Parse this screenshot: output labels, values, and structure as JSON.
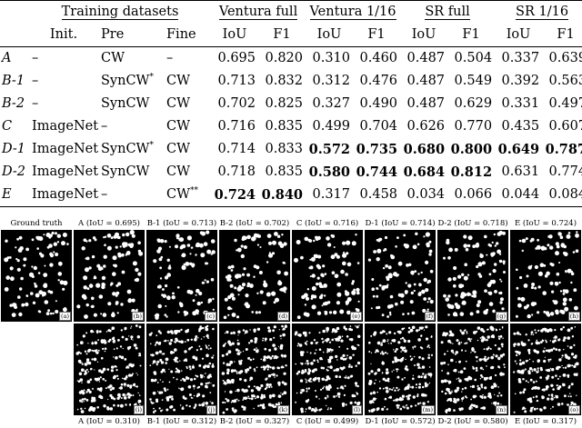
{
  "table": {
    "group_headers": {
      "training": "Training datasets",
      "ventura_full": "Ventura full",
      "ventura_1_16": "Ventura 1/16",
      "sr_full": "SR full",
      "sr_1_16": "SR 1/16"
    },
    "sub_headers": {
      "init": "Init.",
      "pre": "Pre",
      "fine": "Fine",
      "iou": "IoU",
      "f1": "F1"
    },
    "rows": [
      {
        "label": "A",
        "init": "–",
        "pre": "CW",
        "pre_sup": "",
        "fine": "–",
        "fine_sup": "",
        "vals": [
          "0.695",
          "0.820",
          "0.310",
          "0.460",
          "0.487",
          "0.504",
          "0.337",
          "0.639"
        ],
        "bold": [
          false,
          false,
          false,
          false,
          false,
          false,
          false,
          false
        ]
      },
      {
        "label": "B-1",
        "init": "–",
        "pre": "SynCW",
        "pre_sup": "*",
        "fine": "CW",
        "fine_sup": "",
        "vals": [
          "0.713",
          "0.832",
          "0.312",
          "0.476",
          "0.487",
          "0.549",
          "0.392",
          "0.563"
        ],
        "bold": [
          false,
          false,
          false,
          false,
          false,
          false,
          false,
          false
        ]
      },
      {
        "label": "B-2",
        "init": "–",
        "pre": "SynCW",
        "pre_sup": "",
        "fine": "CW",
        "fine_sup": "",
        "vals": [
          "0.702",
          "0.825",
          "0.327",
          "0.490",
          "0.487",
          "0.629",
          "0.331",
          "0.497"
        ],
        "bold": [
          false,
          false,
          false,
          false,
          false,
          false,
          false,
          false
        ]
      },
      {
        "label": "C",
        "init": "ImageNet",
        "pre": "–",
        "pre_sup": "",
        "fine": "CW",
        "fine_sup": "",
        "vals": [
          "0.716",
          "0.835",
          "0.499",
          "0.704",
          "0.626",
          "0.770",
          "0.435",
          "0.607"
        ],
        "bold": [
          false,
          false,
          false,
          false,
          false,
          false,
          false,
          false
        ]
      },
      {
        "label": "D-1",
        "init": "ImageNet",
        "pre": "SynCW",
        "pre_sup": "*",
        "fine": "CW",
        "fine_sup": "",
        "vals": [
          "0.714",
          "0.833",
          "0.572",
          "0.735",
          "0.680",
          "0.800",
          "0.649",
          "0.787"
        ],
        "bold": [
          false,
          false,
          true,
          true,
          true,
          true,
          true,
          true
        ]
      },
      {
        "label": "D-2",
        "init": "ImageNet",
        "pre": "SynCW",
        "pre_sup": "",
        "fine": "CW",
        "fine_sup": "",
        "vals": [
          "0.718",
          "0.835",
          "0.580",
          "0.744",
          "0.684",
          "0.812",
          "0.631",
          "0.774"
        ],
        "bold": [
          false,
          false,
          true,
          true,
          true,
          true,
          false,
          false
        ]
      },
      {
        "label": "E",
        "init": "ImageNet",
        "pre": "–",
        "pre_sup": "",
        "fine": "CW",
        "fine_sup": "**",
        "vals": [
          "0.724",
          "0.840",
          "0.317",
          "0.458",
          "0.034",
          "0.066",
          "0.044",
          "0.084"
        ],
        "bold": [
          true,
          true,
          false,
          false,
          false,
          false,
          false,
          false
        ]
      }
    ]
  },
  "figure": {
    "top_captions": [
      "Ground truth",
      "A (IoU = 0.695)",
      "B-1 (IoU = 0.713)",
      "B-2 (IoU = 0.702)",
      "C (IoU = 0.716)",
      "D-1 (IoU = 0.714)",
      "D-2 (IoU = 0.718)",
      "E (IoU = 0.724)"
    ],
    "top_tags": [
      "(a)",
      "(b)",
      "(c)",
      "(d)",
      "(e)",
      "(f)",
      "(g)",
      "(h)"
    ],
    "bottom_captions": [
      "A (IoU = 0.310)",
      "B-1 (IoU = 0.312)",
      "B-2 (IoU = 0.327)",
      "C (IoU = 0.499)",
      "D-1 (IoU = 0.572)",
      "D-2 (IoU = 0.580)",
      "E (IoU = 0.317)"
    ],
    "bottom_tags": [
      "(i)",
      "(j)",
      "(k)",
      "(l)",
      "(m)",
      "(n)",
      "(o)"
    ]
  }
}
